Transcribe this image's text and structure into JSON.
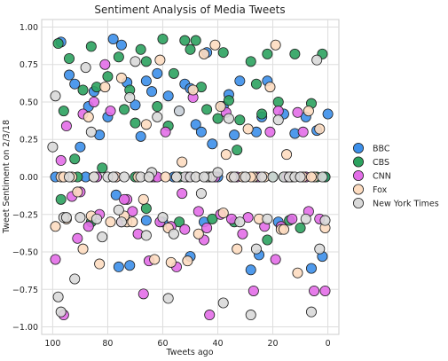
{
  "chart_data": {
    "type": "scatter",
    "title": "Sentiment Analysis of Media Tweets",
    "xlabel": "Tweets ago",
    "ylabel": "Tweet Sentiment on 2/3/18",
    "xlim": [
      104,
      -4
    ],
    "ylim": [
      -1.05,
      1.05
    ],
    "x_ticks": [
      100,
      80,
      60,
      40,
      20,
      0
    ],
    "y_ticks": [
      1.0,
      0.75,
      0.5,
      0.25,
      0.0,
      -0.25,
      -0.5,
      -0.75,
      -1.0
    ],
    "x_tick_labels": [
      "100",
      "80",
      "60",
      "40",
      "20",
      "0"
    ],
    "y_tick_labels": [
      "1.00",
      "0.75",
      "0.50",
      "0.25",
      "0.00",
      "−0.25",
      "−0.50",
      "−0.75",
      "−1.00"
    ],
    "grid": true,
    "legend_position": "right",
    "marker": "circle",
    "series": [
      {
        "name": "BBC",
        "color": "#3c8fea",
        "values": [
          [
            99,
            0.0
          ],
          [
            97,
            0.9
          ],
          [
            94,
            0.68
          ],
          [
            92,
            0.62
          ],
          [
            90,
            0.2
          ],
          [
            87,
            0.47
          ],
          [
            85,
            0.57
          ],
          [
            83,
            0.28
          ],
          [
            80,
            0.4
          ],
          [
            78,
            0.92
          ],
          [
            77,
            -0.12
          ],
          [
            75,
            0.88
          ],
          [
            73,
            0.63
          ],
          [
            70,
            0.48
          ],
          [
            68,
            0.27
          ],
          [
            66,
            0.64
          ],
          [
            64,
            0.57
          ],
          [
            62,
            0.69
          ],
          [
            60,
            -0.3
          ],
          [
            58,
            0.54
          ],
          [
            56,
            0.0
          ],
          [
            54,
            0.44
          ],
          [
            52,
            0.62
          ],
          [
            50,
            0.59
          ],
          [
            48,
            0.35
          ],
          [
            46,
            0.3
          ],
          [
            44,
            0.83
          ],
          [
            42,
            0.22
          ],
          [
            40,
            0.0
          ],
          [
            38,
            0.47
          ],
          [
            36,
            0.55
          ],
          [
            34,
            0.28
          ],
          [
            32,
            0.64
          ],
          [
            30,
            0.0
          ],
          [
            28,
            -0.62
          ],
          [
            26,
            0.3
          ],
          [
            24,
            0.4
          ],
          [
            22,
            0.64
          ],
          [
            20,
            0.0
          ],
          [
            18,
            -0.3
          ],
          [
            16,
            0.42
          ],
          [
            14,
            0.0
          ],
          [
            12,
            0.29
          ],
          [
            10,
            0.0
          ],
          [
            8,
            0.4
          ],
          [
            6,
            -0.61
          ],
          [
            4,
            0.31
          ],
          [
            2,
            -0.53
          ],
          [
            1,
            0.0
          ],
          [
            0,
            0.42
          ],
          [
            96,
            0.0
          ],
          [
            88,
            0.0
          ],
          [
            76,
            -0.6
          ],
          [
            72,
            -0.59
          ],
          [
            66,
            -0.29
          ],
          [
            50,
            -0.53
          ],
          [
            45,
            -0.3
          ],
          [
            35,
            0.0
          ],
          [
            25,
            -0.52
          ],
          [
            15,
            0.0
          ]
        ]
      },
      {
        "name": "CBS",
        "color": "#2ca25f",
        "values": [
          [
            98,
            0.89
          ],
          [
            96,
            0.44
          ],
          [
            94,
            0.79
          ],
          [
            91,
            0.0
          ],
          [
            89,
            0.58
          ],
          [
            86,
            0.87
          ],
          [
            84,
            0.6
          ],
          [
            82,
            0.06
          ],
          [
            80,
            0.67
          ],
          [
            78,
            0.0
          ],
          [
            76,
            0.8
          ],
          [
            74,
            0.45
          ],
          [
            72,
            0.58
          ],
          [
            70,
            0.36
          ],
          [
            68,
            0.85
          ],
          [
            66,
            0.77
          ],
          [
            64,
            0.0
          ],
          [
            62,
            0.47
          ],
          [
            60,
            0.92
          ],
          [
            58,
            0.34
          ],
          [
            56,
            0.69
          ],
          [
            54,
            0.0
          ],
          [
            52,
            0.91
          ],
          [
            50,
            0.85
          ],
          [
            48,
            0.91
          ],
          [
            46,
            0.6
          ],
          [
            44,
            0.45
          ],
          [
            42,
            0.0
          ],
          [
            40,
            0.39
          ],
          [
            38,
            0.83
          ],
          [
            36,
            0.51
          ],
          [
            34,
            -0.3
          ],
          [
            32,
            0.38
          ],
          [
            30,
            0.0
          ],
          [
            28,
            0.77
          ],
          [
            26,
            0.62
          ],
          [
            24,
            0.42
          ],
          [
            22,
            0.82
          ],
          [
            20,
            0.0
          ],
          [
            18,
            0.5
          ],
          [
            16,
            0.0
          ],
          [
            14,
            -0.29
          ],
          [
            12,
            0.82
          ],
          [
            10,
            -0.34
          ],
          [
            8,
            0.0
          ],
          [
            6,
            0.49
          ],
          [
            4,
            0.0
          ],
          [
            2,
            0.82
          ],
          [
            1,
            0.0
          ],
          [
            97,
            -0.15
          ],
          [
            92,
            0.12
          ],
          [
            86,
            -0.3
          ],
          [
            70,
            0.0
          ],
          [
            66,
            -0.21
          ],
          [
            54,
            -0.3
          ],
          [
            42,
            -0.28
          ],
          [
            33,
            0.18
          ],
          [
            26,
            0.0
          ],
          [
            22,
            -0.42
          ],
          [
            14,
            0.0
          ]
        ]
      },
      {
        "name": "CNN",
        "color": "#e36ee8",
        "values": [
          [
            99,
            -0.55
          ],
          [
            97,
            0.11
          ],
          [
            95,
            0.34
          ],
          [
            93,
            -0.13
          ],
          [
            91,
            -0.41
          ],
          [
            89,
            0.42
          ],
          [
            87,
            -0.33
          ],
          [
            85,
            0.5
          ],
          [
            83,
            -0.25
          ],
          [
            81,
            0.75
          ],
          [
            79,
            0.44
          ],
          [
            77,
            0.0
          ],
          [
            75,
            -0.3
          ],
          [
            73,
            -0.15
          ],
          [
            71,
            -0.23
          ],
          [
            69,
            -0.38
          ],
          [
            67,
            -0.78
          ],
          [
            65,
            -0.56
          ],
          [
            63,
            0.0
          ],
          [
            61,
            -0.3
          ],
          [
            59,
            0.3
          ],
          [
            57,
            -0.33
          ],
          [
            55,
            -0.6
          ],
          [
            53,
            -0.11
          ],
          [
            51,
            0.0
          ],
          [
            49,
            0.53
          ],
          [
            47,
            -0.23
          ],
          [
            45,
            -0.42
          ],
          [
            43,
            -0.92
          ],
          [
            41,
            0.0
          ],
          [
            39,
            -0.25
          ],
          [
            37,
            0.43
          ],
          [
            35,
            -0.28
          ],
          [
            33,
            0.0
          ],
          [
            31,
            -0.38
          ],
          [
            29,
            -0.27
          ],
          [
            27,
            -0.76
          ],
          [
            25,
            0.0
          ],
          [
            23,
            -0.33
          ],
          [
            21,
            0.3
          ],
          [
            19,
            -0.55
          ],
          [
            17,
            -0.33
          ],
          [
            15,
            0.0
          ],
          [
            13,
            -0.28
          ],
          [
            11,
            0.43
          ],
          [
            9,
            0.3
          ],
          [
            7,
            -0.23
          ],
          [
            5,
            -0.76
          ],
          [
            3,
            -0.28
          ],
          [
            1,
            -0.76
          ],
          [
            96,
            -0.92
          ],
          [
            90,
            -0.1
          ],
          [
            84,
            0.0
          ],
          [
            74,
            -0.15
          ],
          [
            62,
            0.0
          ],
          [
            52,
            -0.35
          ],
          [
            44,
            -0.34
          ],
          [
            34,
            0.0
          ],
          [
            18,
            0.44
          ],
          [
            8,
            0.0
          ]
        ]
      },
      {
        "name": "Fox",
        "color": "#fddcc0",
        "values": [
          [
            99,
            -0.33
          ],
          [
            97,
            0.0
          ],
          [
            95,
            -0.28
          ],
          [
            93,
            0.0
          ],
          [
            91,
            -0.1
          ],
          [
            89,
            -0.48
          ],
          [
            87,
            0.4
          ],
          [
            85,
            0.0
          ],
          [
            83,
            -0.58
          ],
          [
            81,
            0.6
          ],
          [
            79,
            -0.3
          ],
          [
            77,
            0.0
          ],
          [
            75,
            0.66
          ],
          [
            73,
            -0.3
          ],
          [
            71,
            -0.3
          ],
          [
            69,
            0.0
          ],
          [
            67,
            -0.15
          ],
          [
            65,
            0.0
          ],
          [
            63,
            -0.55
          ],
          [
            61,
            0.78
          ],
          [
            59,
            0.0
          ],
          [
            57,
            -0.57
          ],
          [
            55,
            0.0
          ],
          [
            53,
            0.1
          ],
          [
            51,
            -0.56
          ],
          [
            49,
            0.58
          ],
          [
            47,
            -0.38
          ],
          [
            45,
            0.82
          ],
          [
            43,
            0.0
          ],
          [
            41,
            0.88
          ],
          [
            39,
            0.47
          ],
          [
            37,
            0.15
          ],
          [
            35,
            0.0
          ],
          [
            33,
            -0.48
          ],
          [
            31,
            0.0
          ],
          [
            29,
            0.32
          ],
          [
            27,
            0.0
          ],
          [
            25,
            -0.28
          ],
          [
            23,
            0.0
          ],
          [
            21,
            0.6
          ],
          [
            19,
            0.88
          ],
          [
            17,
            -0.35
          ],
          [
            15,
            0.15
          ],
          [
            13,
            0.0
          ],
          [
            11,
            -0.64
          ],
          [
            9,
            0.0
          ],
          [
            7,
            0.44
          ],
          [
            5,
            0.0
          ],
          [
            3,
            0.32
          ],
          [
            1,
            -0.34
          ],
          [
            96,
            0.0
          ],
          [
            86,
            -0.26
          ],
          [
            74,
            -0.26
          ],
          [
            66,
            0.35
          ],
          [
            58,
            -0.34
          ],
          [
            48,
            0.0
          ],
          [
            38,
            -0.24
          ],
          [
            28,
            0.0
          ],
          [
            16,
            -0.35
          ],
          [
            6,
            0.0
          ]
        ]
      },
      {
        "name": "New York Times",
        "color": "#d9d9d9",
        "values": [
          [
            100,
            0.2
          ],
          [
            99,
            0.54
          ],
          [
            98,
            -0.8
          ],
          [
            97,
            -0.9
          ],
          [
            96,
            -0.27
          ],
          [
            94,
            0.0
          ],
          [
            92,
            -0.68
          ],
          [
            90,
            -0.27
          ],
          [
            88,
            0.73
          ],
          [
            86,
            0.3
          ],
          [
            84,
            -0.28
          ],
          [
            82,
            -0.4
          ],
          [
            80,
            0.0
          ],
          [
            78,
            0.0
          ],
          [
            76,
            -0.22
          ],
          [
            74,
            0.0
          ],
          [
            72,
            0.53
          ],
          [
            70,
            0.77
          ],
          [
            68,
            0.0
          ],
          [
            66,
            -0.39
          ],
          [
            64,
            0.03
          ],
          [
            62,
            0.4
          ],
          [
            60,
            -0.27
          ],
          [
            58,
            -0.81
          ],
          [
            56,
            -0.38
          ],
          [
            54,
            0.44
          ],
          [
            52,
            0.0
          ],
          [
            50,
            0.0
          ],
          [
            48,
            0.0
          ],
          [
            46,
            -0.11
          ],
          [
            44,
            0.0
          ],
          [
            42,
            0.0
          ],
          [
            40,
            0.03
          ],
          [
            38,
            -0.84
          ],
          [
            36,
            0.39
          ],
          [
            34,
            0.0
          ],
          [
            32,
            -0.3
          ],
          [
            30,
            0.0
          ],
          [
            28,
            -0.92
          ],
          [
            26,
            -0.48
          ],
          [
            24,
            0.0
          ],
          [
            22,
            -0.28
          ],
          [
            20,
            0.0
          ],
          [
            18,
            0.38
          ],
          [
            16,
            0.0
          ],
          [
            14,
            0.0
          ],
          [
            12,
            0.0
          ],
          [
            10,
            0.0
          ],
          [
            8,
            -0.28
          ],
          [
            6,
            -0.9
          ],
          [
            4,
            0.78
          ],
          [
            3,
            -0.48
          ],
          [
            2,
            0.0
          ],
          [
            1,
            -0.29
          ],
          [
            95,
            -0.27
          ],
          [
            85,
            0.0
          ],
          [
            75,
            -0.3
          ],
          [
            65,
            0.0
          ],
          [
            55,
            0.0
          ],
          [
            45,
            0.0
          ]
        ]
      }
    ]
  }
}
